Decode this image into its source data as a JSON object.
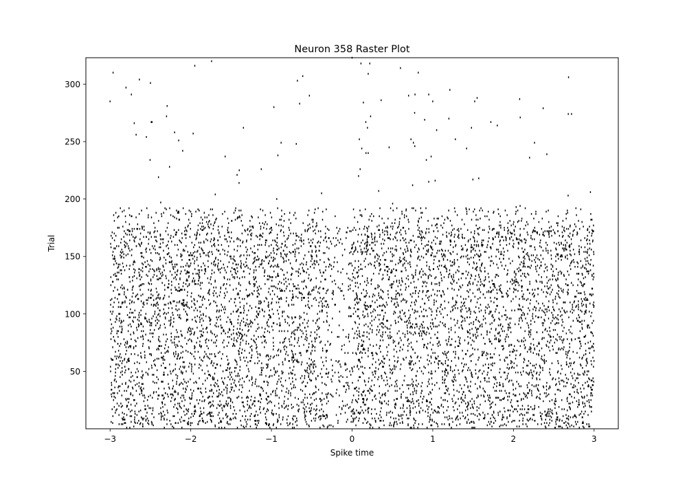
{
  "chart_data": {
    "type": "scatter",
    "subtype": "raster",
    "title": "Neuron 358 Raster Plot",
    "xlabel": "Spike time",
    "ylabel": "Trial",
    "xlim": [
      -3.3,
      3.3
    ],
    "ylim": [
      0,
      323
    ],
    "xticks": [
      -3,
      -2,
      -1,
      0,
      1,
      2,
      3
    ],
    "xtick_labels": [
      "−3",
      "−2",
      "−1",
      "0",
      "1",
      "2",
      "3"
    ],
    "yticks": [
      50,
      100,
      150,
      200,
      250,
      300
    ],
    "ytick_labels": [
      "50",
      "100",
      "150",
      "200",
      "250",
      "300"
    ],
    "grid": false,
    "legend": "none",
    "marker_color": "#000000",
    "trial_density": [
      {
        "trials": [
          0,
          176
        ],
        "spikes_per_trial": 40,
        "x_range": [
          -3,
          3
        ]
      },
      {
        "trials": [
          176,
          192
        ],
        "spikes_per_trial": 18,
        "x_range": [
          -3,
          3
        ]
      },
      {
        "trials": [
          192,
          320
        ],
        "spikes_per_trial": 0.35,
        "x_range": [
          -3,
          3
        ]
      }
    ],
    "sparse_spikes": [
      {
        "x": -3.0,
        "y": 285
      },
      {
        "x": -2.55,
        "y": 254
      },
      {
        "x": -2.48,
        "y": 267
      },
      {
        "x": -2.4,
        "y": 219
      },
      {
        "x": -2.3,
        "y": 272
      },
      {
        "x": -2.2,
        "y": 258
      },
      {
        "x": -2.15,
        "y": 251
      },
      {
        "x": -2.1,
        "y": 242
      },
      {
        "x": -1.95,
        "y": 316
      },
      {
        "x": -1.97,
        "y": 257
      },
      {
        "x": -0.97,
        "y": 280
      },
      {
        "x": -0.92,
        "y": 238
      },
      {
        "x": -0.88,
        "y": 249
      },
      {
        "x": -0.65,
        "y": 283
      },
      {
        "x": 0.0,
        "y": 323
      },
      {
        "x": 0.11,
        "y": 318
      },
      {
        "x": 0.14,
        "y": 284
      },
      {
        "x": 0.17,
        "y": 267
      },
      {
        "x": 0.19,
        "y": 262
      },
      {
        "x": 0.2,
        "y": 309
      },
      {
        "x": 0.22,
        "y": 318
      },
      {
        "x": 0.09,
        "y": 252
      },
      {
        "x": 0.12,
        "y": 244
      },
      {
        "x": 0.1,
        "y": 226
      },
      {
        "x": 0.08,
        "y": 220
      },
      {
        "x": 0.2,
        "y": 240
      },
      {
        "x": 0.36,
        "y": 286
      },
      {
        "x": 0.6,
        "y": 314
      },
      {
        "x": 0.7,
        "y": 290
      },
      {
        "x": 0.73,
        "y": 252
      },
      {
        "x": 0.76,
        "y": 249
      },
      {
        "x": 0.78,
        "y": 291
      },
      {
        "x": 0.82,
        "y": 310
      },
      {
        "x": 0.9,
        "y": 269
      },
      {
        "x": 0.92,
        "y": 234
      },
      {
        "x": 0.95,
        "y": 291
      },
      {
        "x": 0.98,
        "y": 237
      },
      {
        "x": 1.0,
        "y": 285
      },
      {
        "x": 0.75,
        "y": 212
      },
      {
        "x": 0.95,
        "y": 215
      },
      {
        "x": 1.2,
        "y": 270
      },
      {
        "x": 1.28,
        "y": 252
      },
      {
        "x": 1.42,
        "y": 244
      },
      {
        "x": 1.48,
        "y": 262
      },
      {
        "x": 1.52,
        "y": 285
      },
      {
        "x": 1.55,
        "y": 288
      },
      {
        "x": 1.57,
        "y": 218
      },
      {
        "x": 1.72,
        "y": 267
      },
      {
        "x": 1.8,
        "y": 264
      },
      {
        "x": 2.2,
        "y": 236
      },
      {
        "x": 2.68,
        "y": 274
      },
      {
        "x": 2.72,
        "y": 274
      }
    ]
  }
}
